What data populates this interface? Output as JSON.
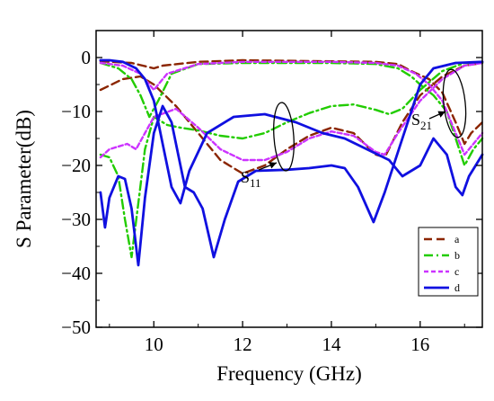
{
  "chart_data": {
    "type": "line",
    "xlabel": "Frequency (GHz)",
    "ylabel": "S Parameter(dB)",
    "xlim": [
      8.7,
      17.4
    ],
    "ylim": [
      -50,
      5
    ],
    "xticks": [
      10,
      12,
      14,
      16
    ],
    "yticks": [
      0,
      -10,
      -20,
      -30,
      -40,
      -50
    ],
    "legend_position": "bottom-right",
    "grid": false,
    "series": [
      {
        "name": "a",
        "color": "#8B2500",
        "dash": "dashed",
        "s11": [
          [
            8.8,
            -6
          ],
          [
            9.3,
            -4
          ],
          [
            9.7,
            -3.5
          ],
          [
            10.0,
            -5
          ],
          [
            10.5,
            -9
          ],
          [
            11.0,
            -14
          ],
          [
            11.5,
            -19
          ],
          [
            12.0,
            -21.5
          ],
          [
            12.5,
            -20
          ],
          [
            13.0,
            -17
          ],
          [
            13.5,
            -14.5
          ],
          [
            14.0,
            -13
          ],
          [
            14.5,
            -14
          ],
          [
            15.0,
            -18
          ],
          [
            15.2,
            -18.5
          ],
          [
            15.6,
            -12
          ],
          [
            16.0,
            -7
          ],
          [
            16.5,
            -3.5
          ],
          [
            17.0,
            -1.5
          ],
          [
            17.4,
            -1
          ]
        ],
        "s21": [
          [
            8.8,
            -0.7
          ],
          [
            9.5,
            -1
          ],
          [
            10.0,
            -2
          ],
          [
            10.2,
            -1.5
          ],
          [
            11.0,
            -0.8
          ],
          [
            12.0,
            -0.5
          ],
          [
            13.0,
            -0.6
          ],
          [
            14.0,
            -0.7
          ],
          [
            15.0,
            -0.8
          ],
          [
            15.5,
            -1.2
          ],
          [
            15.8,
            -2.5
          ],
          [
            16.2,
            -4
          ],
          [
            16.5,
            -6.5
          ],
          [
            16.8,
            -12
          ],
          [
            17.0,
            -16
          ],
          [
            17.15,
            -14
          ],
          [
            17.4,
            -12
          ]
        ]
      },
      {
        "name": "b",
        "color": "#22CC00",
        "dash": "dashdot",
        "s11": [
          [
            8.8,
            -18
          ],
          [
            9.0,
            -18.5
          ],
          [
            9.2,
            -22
          ],
          [
            9.35,
            -30
          ],
          [
            9.5,
            -37
          ],
          [
            9.65,
            -27
          ],
          [
            9.8,
            -17
          ],
          [
            10.0,
            -11
          ],
          [
            10.3,
            -12.5
          ],
          [
            10.6,
            -13
          ],
          [
            11.0,
            -13.5
          ],
          [
            11.5,
            -14.5
          ],
          [
            12.0,
            -15
          ],
          [
            12.5,
            -14
          ],
          [
            13.0,
            -12
          ],
          [
            13.5,
            -10.3
          ],
          [
            14.0,
            -9
          ],
          [
            14.5,
            -8.7
          ],
          [
            15.0,
            -9.7
          ],
          [
            15.3,
            -10.5
          ],
          [
            15.6,
            -9.5
          ],
          [
            16.0,
            -6
          ],
          [
            16.5,
            -2.5
          ],
          [
            17.0,
            -1
          ],
          [
            17.4,
            -1
          ]
        ],
        "s21": [
          [
            8.8,
            -1
          ],
          [
            9.2,
            -2
          ],
          [
            9.5,
            -4
          ],
          [
            9.7,
            -7
          ],
          [
            9.9,
            -11
          ],
          [
            10.1,
            -8
          ],
          [
            10.4,
            -3
          ],
          [
            11.0,
            -1.2
          ],
          [
            12.0,
            -1
          ],
          [
            13.0,
            -1
          ],
          [
            14.0,
            -1
          ],
          [
            15.0,
            -1.2
          ],
          [
            15.5,
            -2
          ],
          [
            15.8,
            -3.5
          ],
          [
            16.0,
            -5
          ],
          [
            16.3,
            -7
          ],
          [
            16.6,
            -10
          ],
          [
            16.8,
            -15
          ],
          [
            17.0,
            -20
          ],
          [
            17.2,
            -17
          ],
          [
            17.4,
            -15
          ]
        ]
      },
      {
        "name": "c",
        "color": "#CC33FF",
        "dash": "shortdash",
        "s11": [
          [
            8.8,
            -18.5
          ],
          [
            9.0,
            -17
          ],
          [
            9.2,
            -16.5
          ],
          [
            9.4,
            -16
          ],
          [
            9.6,
            -17
          ],
          [
            9.8,
            -14
          ],
          [
            10.0,
            -11
          ],
          [
            10.5,
            -9.5
          ],
          [
            11.0,
            -13
          ],
          [
            11.5,
            -17
          ],
          [
            12.0,
            -19
          ],
          [
            12.5,
            -19
          ],
          [
            13.0,
            -17.5
          ],
          [
            13.5,
            -15
          ],
          [
            14.0,
            -13.7
          ],
          [
            14.5,
            -14.5
          ],
          [
            15.0,
            -17.5
          ],
          [
            15.2,
            -18
          ],
          [
            15.5,
            -14
          ],
          [
            16.0,
            -8
          ],
          [
            16.5,
            -4
          ],
          [
            17.0,
            -1.5
          ],
          [
            17.4,
            -1
          ]
        ],
        "s21": [
          [
            8.8,
            -1
          ],
          [
            9.3,
            -1.5
          ],
          [
            9.7,
            -3
          ],
          [
            10.0,
            -6
          ],
          [
            10.3,
            -3
          ],
          [
            11.0,
            -1.2
          ],
          [
            12.0,
            -0.8
          ],
          [
            13.0,
            -0.8
          ],
          [
            14.0,
            -0.8
          ],
          [
            15.0,
            -1
          ],
          [
            15.5,
            -1.5
          ],
          [
            15.9,
            -3
          ],
          [
            16.2,
            -5
          ],
          [
            16.5,
            -8
          ],
          [
            16.8,
            -14
          ],
          [
            17.0,
            -18
          ],
          [
            17.2,
            -16
          ],
          [
            17.4,
            -14
          ]
        ]
      },
      {
        "name": "d",
        "color": "#1010E0",
        "dash": "solid",
        "s11": [
          [
            8.8,
            -25
          ],
          [
            8.9,
            -31.5
          ],
          [
            9.0,
            -26
          ],
          [
            9.2,
            -22
          ],
          [
            9.35,
            -22.5
          ],
          [
            9.5,
            -28
          ],
          [
            9.65,
            -38.5
          ],
          [
            9.8,
            -26
          ],
          [
            10.0,
            -14
          ],
          [
            10.2,
            -9
          ],
          [
            10.4,
            -12
          ],
          [
            10.6,
            -20
          ],
          [
            10.7,
            -24
          ],
          [
            10.9,
            -25
          ],
          [
            11.1,
            -28
          ],
          [
            11.35,
            -37
          ],
          [
            11.6,
            -30
          ],
          [
            11.9,
            -23
          ],
          [
            12.3,
            -21
          ],
          [
            13.0,
            -20.8
          ],
          [
            13.5,
            -20.5
          ],
          [
            14.0,
            -20
          ],
          [
            14.3,
            -20.5
          ],
          [
            14.6,
            -24
          ],
          [
            14.95,
            -30.5
          ],
          [
            15.2,
            -25
          ],
          [
            15.6,
            -15
          ],
          [
            16.0,
            -5
          ],
          [
            16.3,
            -2
          ],
          [
            16.8,
            -1
          ],
          [
            17.4,
            -0.8
          ]
        ],
        "s21": [
          [
            8.8,
            -0.5
          ],
          [
            9.0,
            -0.5
          ],
          [
            9.3,
            -0.8
          ],
          [
            9.6,
            -2
          ],
          [
            9.8,
            -4
          ],
          [
            10.0,
            -8
          ],
          [
            10.2,
            -16
          ],
          [
            10.4,
            -24
          ],
          [
            10.6,
            -27
          ],
          [
            10.8,
            -21
          ],
          [
            11.2,
            -14
          ],
          [
            11.8,
            -11
          ],
          [
            12.5,
            -10.5
          ],
          [
            13.2,
            -12
          ],
          [
            13.8,
            -14
          ],
          [
            14.3,
            -15
          ],
          [
            14.8,
            -17
          ],
          [
            15.3,
            -19
          ],
          [
            15.6,
            -22
          ],
          [
            16.0,
            -20
          ],
          [
            16.3,
            -15
          ],
          [
            16.6,
            -18
          ],
          [
            16.8,
            -24
          ],
          [
            16.95,
            -25.5
          ],
          [
            17.1,
            -22
          ],
          [
            17.4,
            -18
          ]
        ]
      }
    ],
    "annotations": [
      {
        "label": "S",
        "sub": "11"
      },
      {
        "label": "S",
        "sub": "21"
      }
    ]
  }
}
